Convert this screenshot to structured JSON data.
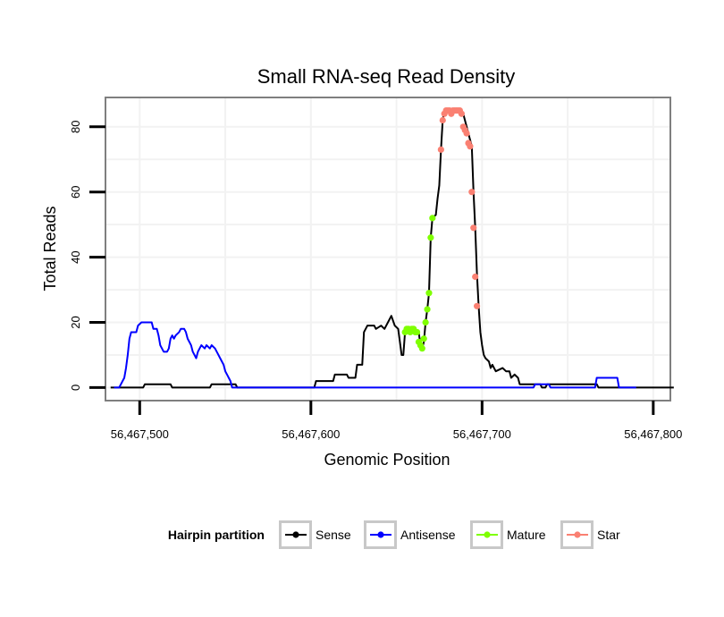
{
  "chart_data": {
    "type": "line",
    "title": "Small RNA-seq Read Density",
    "xlabel": "Genomic Position",
    "ylabel": "Total Reads",
    "xlim": [
      56467480,
      56467810
    ],
    "ylim": [
      -4,
      89
    ],
    "x_ticks": [
      {
        "value": 56467500,
        "label": "56,467,500"
      },
      {
        "value": 56467600,
        "label": "56,467,600"
      },
      {
        "value": 56467700,
        "label": "56,467,700"
      },
      {
        "value": 56467800,
        "label": "56,467,800"
      }
    ],
    "y_ticks": [
      {
        "value": 0,
        "label": "0"
      },
      {
        "value": 20,
        "label": "20"
      },
      {
        "value": 40,
        "label": "40"
      },
      {
        "value": 60,
        "label": "60"
      },
      {
        "value": 80,
        "label": "80"
      }
    ],
    "grid": true,
    "legend": {
      "title": "Hairpin partition",
      "position": "bottom"
    },
    "series": [
      {
        "name": "Sense",
        "color": "#000000",
        "style": "line",
        "points": [
          [
            56467483,
            0
          ],
          [
            56467502,
            0
          ],
          [
            56467503,
            1
          ],
          [
            56467518,
            1
          ],
          [
            56467519,
            0
          ],
          [
            56467541,
            0
          ],
          [
            56467542,
            1
          ],
          [
            56467556,
            1
          ],
          [
            56467557,
            0
          ],
          [
            56467602,
            0
          ],
          [
            56467603,
            2
          ],
          [
            56467613,
            2
          ],
          [
            56467614,
            4
          ],
          [
            56467621,
            4
          ],
          [
            56467622,
            3
          ],
          [
            56467626,
            3
          ],
          [
            56467627,
            7
          ],
          [
            56467630,
            7
          ],
          [
            56467631,
            17
          ],
          [
            56467633,
            19
          ],
          [
            56467637,
            19
          ],
          [
            56467638,
            18
          ],
          [
            56467641,
            19
          ],
          [
            56467643,
            18
          ],
          [
            56467646,
            21
          ],
          [
            56467647,
            22
          ],
          [
            56467649,
            19
          ],
          [
            56467651,
            18
          ],
          [
            56467653,
            10
          ],
          [
            56467654,
            10
          ],
          [
            56467655,
            17
          ],
          [
            56467663,
            17
          ],
          [
            56467664,
            13
          ],
          [
            56467665,
            12
          ],
          [
            56467666,
            14
          ],
          [
            56467667,
            20
          ],
          [
            56467668,
            24
          ],
          [
            56467669,
            29
          ],
          [
            56467670,
            46
          ],
          [
            56467671,
            52
          ],
          [
            56467673,
            53
          ],
          [
            56467674,
            58
          ],
          [
            56467675,
            62
          ],
          [
            56467676,
            73
          ],
          [
            56467677,
            82
          ],
          [
            56467678,
            85
          ],
          [
            56467680,
            85
          ],
          [
            56467682,
            84
          ],
          [
            56467684,
            85
          ],
          [
            56467688,
            85
          ],
          [
            56467689,
            84
          ],
          [
            56467690,
            82
          ],
          [
            56467691,
            80
          ],
          [
            56467692,
            78
          ],
          [
            56467693,
            76
          ],
          [
            56467694,
            74
          ],
          [
            56467695,
            60
          ],
          [
            56467696,
            49
          ],
          [
            56467697,
            35
          ],
          [
            56467698,
            25
          ],
          [
            56467699,
            17
          ],
          [
            56467700,
            13
          ],
          [
            56467701,
            10
          ],
          [
            56467702,
            9
          ],
          [
            56467704,
            8
          ],
          [
            56467705,
            6
          ],
          [
            56467706,
            7
          ],
          [
            56467708,
            5
          ],
          [
            56467712,
            6
          ],
          [
            56467714,
            5
          ],
          [
            56467716,
            5
          ],
          [
            56467717,
            3
          ],
          [
            56467719,
            4
          ],
          [
            56467721,
            3
          ],
          [
            56467722,
            1
          ],
          [
            56467734,
            1
          ],
          [
            56467735,
            0
          ],
          [
            56467737,
            0
          ],
          [
            56467738,
            1
          ],
          [
            56467767,
            1
          ],
          [
            56467768,
            0
          ],
          [
            56467812,
            0
          ]
        ]
      },
      {
        "name": "Antisense",
        "color": "#0000ff",
        "style": "line",
        "points": [
          [
            56467485,
            0
          ],
          [
            56467488,
            0
          ],
          [
            56467490,
            2
          ],
          [
            56467491,
            3
          ],
          [
            56467492,
            6
          ],
          [
            56467493,
            10
          ],
          [
            56467494,
            15
          ],
          [
            56467495,
            17
          ],
          [
            56467498,
            17
          ],
          [
            56467499,
            19
          ],
          [
            56467501,
            20
          ],
          [
            56467507,
            20
          ],
          [
            56467508,
            18
          ],
          [
            56467510,
            18
          ],
          [
            56467511,
            16
          ],
          [
            56467512,
            13
          ],
          [
            56467513,
            12
          ],
          [
            56467514,
            11
          ],
          [
            56467516,
            11
          ],
          [
            56467517,
            12
          ],
          [
            56467518,
            15
          ],
          [
            56467519,
            16
          ],
          [
            56467520,
            15
          ],
          [
            56467521,
            16
          ],
          [
            56467523,
            17
          ],
          [
            56467524,
            18
          ],
          [
            56467526,
            18
          ],
          [
            56467527,
            17
          ],
          [
            56467528,
            15
          ],
          [
            56467529,
            14
          ],
          [
            56467530,
            13
          ],
          [
            56467531,
            11
          ],
          [
            56467532,
            10
          ],
          [
            56467533,
            9
          ],
          [
            56467534,
            11
          ],
          [
            56467535,
            12
          ],
          [
            56467536,
            13
          ],
          [
            56467538,
            12
          ],
          [
            56467539,
            13
          ],
          [
            56467541,
            12
          ],
          [
            56467542,
            13
          ],
          [
            56467544,
            12
          ],
          [
            56467545,
            11
          ],
          [
            56467546,
            10
          ],
          [
            56467547,
            9
          ],
          [
            56467548,
            8
          ],
          [
            56467549,
            7
          ],
          [
            56467550,
            5
          ],
          [
            56467551,
            4
          ],
          [
            56467552,
            3
          ],
          [
            56467553,
            2
          ],
          [
            56467554,
            0
          ],
          [
            56467567,
            0
          ],
          [
            56467568,
            0
          ],
          [
            56467730,
            0
          ],
          [
            56467731,
            1
          ],
          [
            56467739,
            1
          ],
          [
            56467740,
            0
          ],
          [
            56467766,
            0
          ],
          [
            56467767,
            3
          ],
          [
            56467779,
            3
          ],
          [
            56467780,
            0
          ],
          [
            56467790,
            0
          ]
        ]
      },
      {
        "name": "Mature",
        "color": "#7fff00",
        "style": "points",
        "points": [
          [
            56467655,
            17
          ],
          [
            56467656,
            18
          ],
          [
            56467657,
            18
          ],
          [
            56467658,
            17
          ],
          [
            56467659,
            18
          ],
          [
            56467660,
            18
          ],
          [
            56467661,
            17
          ],
          [
            56467662,
            17
          ],
          [
            56467663,
            14
          ],
          [
            56467664,
            13
          ],
          [
            56467665,
            12
          ],
          [
            56467666,
            15
          ],
          [
            56467667,
            20
          ],
          [
            56467668,
            24
          ],
          [
            56467669,
            29
          ],
          [
            56467670,
            46
          ],
          [
            56467671,
            52
          ]
        ]
      },
      {
        "name": "Star",
        "color": "#fa8072",
        "style": "points",
        "points": [
          [
            56467676,
            73
          ],
          [
            56467677,
            82
          ],
          [
            56467678,
            84
          ],
          [
            56467679,
            85
          ],
          [
            56467680,
            85
          ],
          [
            56467681,
            85
          ],
          [
            56467682,
            84
          ],
          [
            56467683,
            85
          ],
          [
            56467684,
            85
          ],
          [
            56467685,
            85
          ],
          [
            56467686,
            85
          ],
          [
            56467687,
            85
          ],
          [
            56467688,
            84
          ],
          [
            56467689,
            80
          ],
          [
            56467690,
            79
          ],
          [
            56467691,
            78
          ],
          [
            56467692,
            75
          ],
          [
            56467693,
            74
          ],
          [
            56467694,
            60
          ],
          [
            56467695,
            49
          ],
          [
            56467696,
            34
          ],
          [
            56467697,
            25
          ]
        ]
      }
    ]
  }
}
